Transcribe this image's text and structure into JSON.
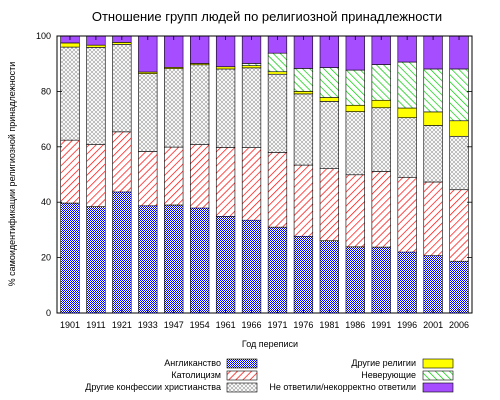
{
  "chart_data": {
    "type": "bar",
    "stacked": true,
    "title": "Отношение групп людей по религиозной принадлежности",
    "xlabel": "Год переписи",
    "ylabel": "% самоидентификации религиозной принадлежности",
    "ylim": [
      0,
      100
    ],
    "yticks": [
      0,
      20,
      40,
      60,
      80,
      100
    ],
    "grid": false,
    "legend_position": "bottom",
    "categories": [
      "1901",
      "1911",
      "1921",
      "1933",
      "1947",
      "1954",
      "1961",
      "1966",
      "1971",
      "1976",
      "1981",
      "1986",
      "1991",
      "1996",
      "2001",
      "2006"
    ],
    "series": [
      {
        "name": "Англиканство",
        "color": "#0000ff",
        "pattern": "checker",
        "values": [
          39.7,
          38.4,
          43.7,
          38.7,
          39.0,
          37.9,
          34.9,
          33.5,
          31.0,
          27.7,
          26.1,
          23.9,
          23.8,
          22.0,
          20.7,
          18.7
        ]
      },
      {
        "name": "Католицизм",
        "color": "#ff0000",
        "pattern": "diagonal",
        "values": [
          22.7,
          22.4,
          21.7,
          19.6,
          20.9,
          22.9,
          24.9,
          26.2,
          27.0,
          25.7,
          26.0,
          26.0,
          27.3,
          27.0,
          26.6,
          25.8
        ]
      },
      {
        "name": "Другие конфессии христианства",
        "color": "#808080",
        "pattern": "crosshatch",
        "values": [
          33.6,
          35.1,
          31.6,
          28.1,
          28.3,
          28.8,
          28.3,
          28.8,
          28.2,
          25.7,
          24.3,
          22.8,
          23.0,
          21.5,
          20.4,
          19.3
        ]
      },
      {
        "name": "Другие религии",
        "color": "#ffff00",
        "pattern": "solid",
        "values": [
          1.5,
          0.8,
          0.7,
          0.6,
          0.5,
          0.5,
          0.8,
          0.8,
          0.9,
          0.9,
          1.4,
          2.3,
          2.7,
          3.5,
          4.9,
          5.6
        ]
      },
      {
        "name": "Неверующие",
        "color": "#00cc00",
        "pattern": "diagonal",
        "values": [
          0.0,
          0.0,
          0.0,
          0.0,
          0.0,
          0.0,
          0.0,
          0.8,
          6.7,
          8.3,
          10.8,
          12.7,
          12.9,
          16.6,
          15.5,
          18.7
        ]
      },
      {
        "name": "Не ответили/некорректно ответили",
        "color": "#a64dff",
        "pattern": "solid",
        "values": [
          2.5,
          3.3,
          2.3,
          13.0,
          11.3,
          9.9,
          11.1,
          9.9,
          6.2,
          11.7,
          11.4,
          12.3,
          10.3,
          9.4,
          11.9,
          11.9
        ]
      }
    ]
  }
}
